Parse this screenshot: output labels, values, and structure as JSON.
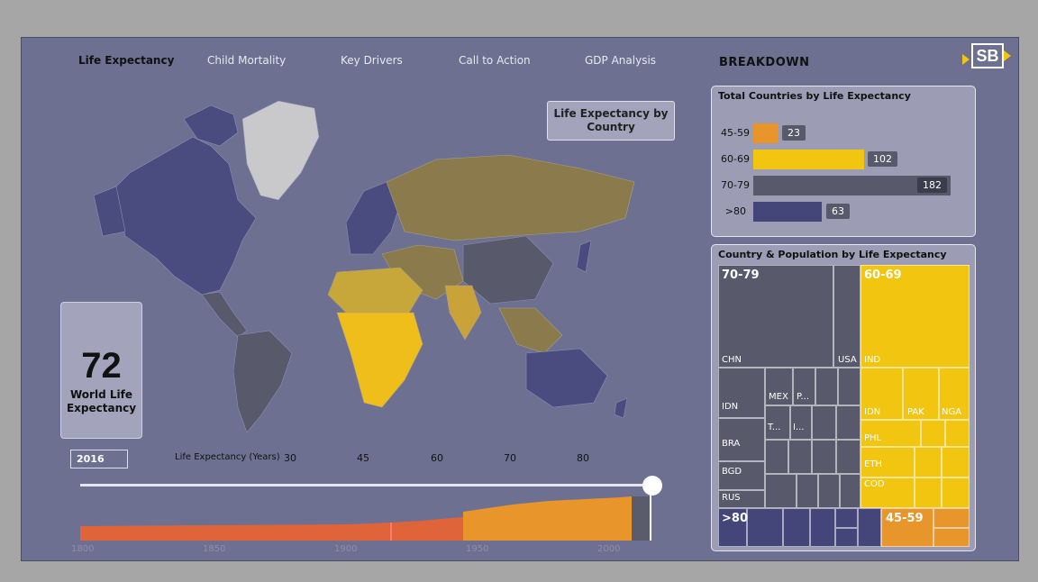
{
  "nav": {
    "tabs": [
      "Life Expectancy",
      "Child Mortality",
      "Key Drivers",
      "Call to Action",
      "GDP Analysis"
    ],
    "active": "Life Expectancy"
  },
  "breakdown_label": "BREAKDOWN",
  "logo_text": "SB",
  "map": {
    "title": "Life Expectancy by Country",
    "legend_label": "Life Expectancy (Years)",
    "legend_ticks": [
      "30",
      "45",
      "60",
      "70",
      "80"
    ]
  },
  "kpi": {
    "value": "72",
    "label": "World Life Expectancy"
  },
  "year": "2016",
  "timeline": {
    "axis": [
      "1800",
      "1850",
      "1900",
      "1950",
      "2000"
    ]
  },
  "total_countries": {
    "title": "Total Countries by Life Expectancy",
    "bars": [
      {
        "label": "45-59",
        "value": "23",
        "color": "#e8962b"
      },
      {
        "label": "60-69",
        "value": "102",
        "color": "#f2c511"
      },
      {
        "label": "70-79",
        "value": "182",
        "color": "#58596a"
      },
      {
        "label": ">80",
        "value": "63",
        "color": "#44467a"
      }
    ]
  },
  "treemap": {
    "title": "Country & Population by Life Expectancy",
    "groups": {
      "g7079": "70-79",
      "g6069": "60-69",
      "g80": ">80",
      "g4559": "45-59"
    },
    "labels": {
      "chn": "CHN",
      "usa": "USA",
      "idn1": "IDN",
      "mex": "MEX",
      "p": "P...",
      "bra": "BRA",
      "t": "T...",
      "i": "I...",
      "bgd": "BGD",
      "rus": "RUS",
      "ind": "IND",
      "idn2": "IDN",
      "pak": "PAK",
      "nga": "NGA",
      "phl": "PHL",
      "eth": "ETH",
      "cod": "COD"
    }
  },
  "colors": {
    "bg": "#6e7091",
    "c70": "#58596a",
    "c60": "#f2c511",
    "c80": "#44467a",
    "c45": "#e8962b"
  }
}
